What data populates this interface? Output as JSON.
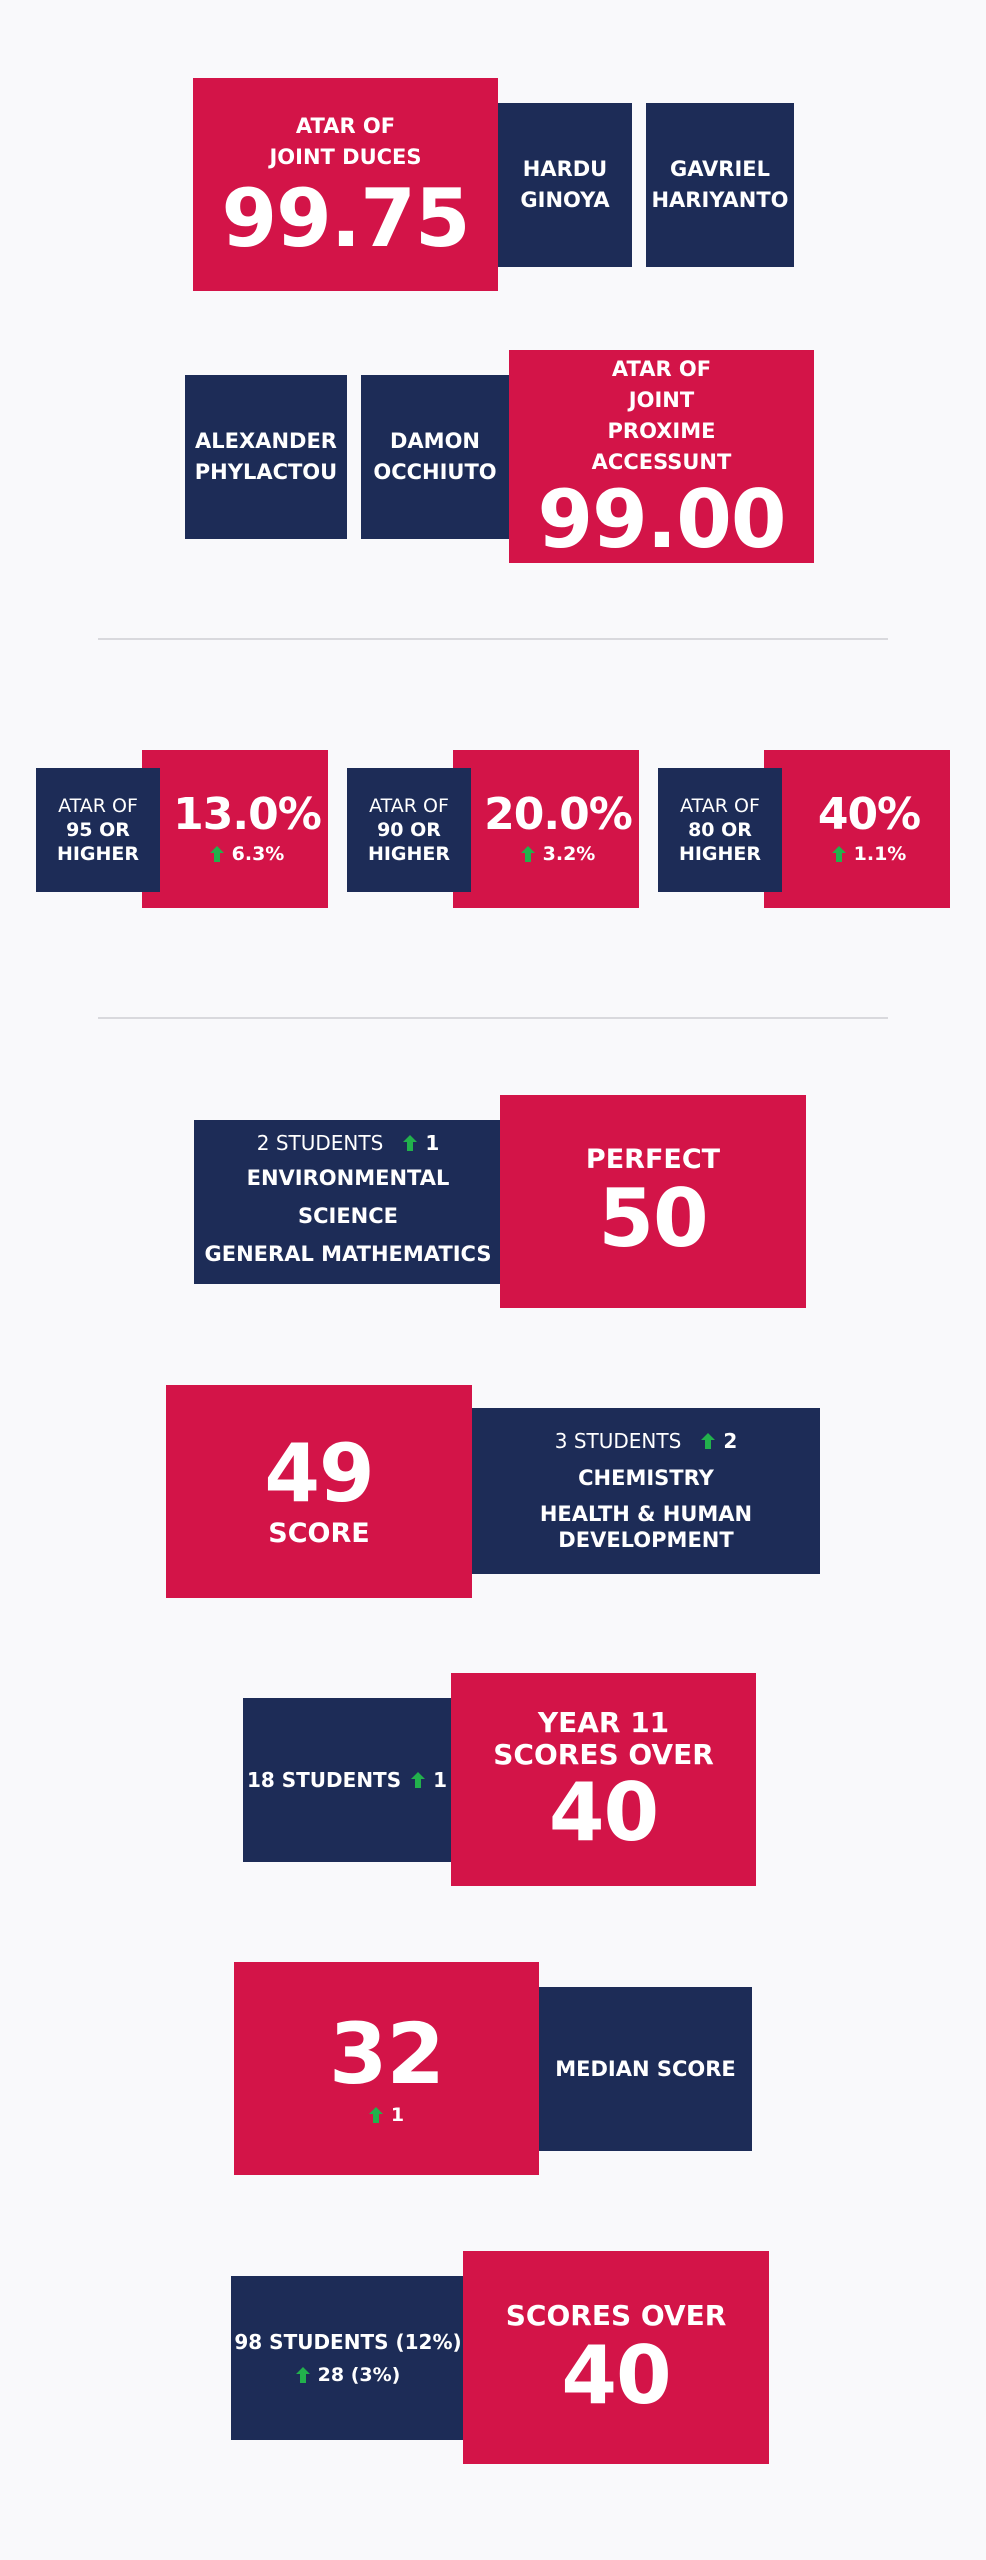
{
  "colors": {
    "accent_red": "#d31448",
    "navy": "#1d2c57",
    "up_arrow": "#22b14c",
    "background": "#f9f9fb"
  },
  "duces": {
    "label_line1": "ATAR OF",
    "label_line2": "JOINT DUCES",
    "value": "99.75",
    "names": [
      {
        "first": "HARDU",
        "last": "GINOYA"
      },
      {
        "first": "GAVRIEL",
        "last": "HARIYANTO"
      }
    ]
  },
  "proxime": {
    "names": [
      {
        "first": "ALEXANDER",
        "last": "PHYLACTOU"
      },
      {
        "first": "DAMON",
        "last": "OCCHIUTO"
      }
    ],
    "label_line1": "ATAR OF",
    "label_line2": "JOINT",
    "label_line3": "PROXIME",
    "label_line4": "ACCESSUNT",
    "value": "99.00"
  },
  "atar_stats": [
    {
      "label_line1": "ATAR OF",
      "label_line2": "95 OR",
      "label_line3": "HIGHER",
      "value": "13.0%",
      "change": "6.3%",
      "change_icon": "up-arrow-icon"
    },
    {
      "label_line1": "ATAR OF",
      "label_line2": "90 OR",
      "label_line3": "HIGHER",
      "value": "20.0%",
      "change": "3.2%",
      "change_icon": "up-arrow-icon"
    },
    {
      "label_line1": "ATAR OF",
      "label_line2": "80 OR",
      "label_line3": "HIGHER",
      "value": "40%",
      "change": "1.1%",
      "change_icon": "up-arrow-icon"
    }
  ],
  "perfect": {
    "students": "2 STUDENTS",
    "change": "1",
    "subjects": [
      "ENVIRONMENTAL SCIENCE",
      "GENERAL MATHEMATICS"
    ],
    "label": "PERFECT",
    "value": "50"
  },
  "score49": {
    "value": "49",
    "label": "SCORE",
    "students": "3 STUDENTS",
    "change": "2",
    "subjects": [
      "CHEMISTRY",
      "HEALTH & HUMAN",
      "DEVELOPMENT"
    ]
  },
  "year11": {
    "students": "18 STUDENTS",
    "change": "1",
    "label_line1": "YEAR 11",
    "label_line2": "SCORES OVER",
    "value": "40"
  },
  "median": {
    "value": "32",
    "change": "1",
    "label": "MEDIAN SCORE"
  },
  "over40": {
    "students": "98 STUDENTS (12%)",
    "change": "28 (3%)",
    "label": "SCORES OVER",
    "value": "40"
  }
}
